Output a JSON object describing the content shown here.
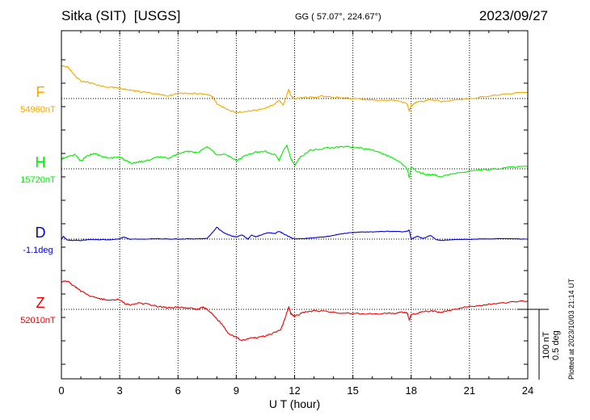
{
  "header": {
    "station": "Sitka (SIT)",
    "source": "[USGS]",
    "coords": "GG ( 57.07°, 224.67°)",
    "date": "2023/09/27"
  },
  "footnote": "Plotted at 2023/10/03 21:14 UT",
  "scale": {
    "line1": "100 nT",
    "line2": "0.5 deg"
  },
  "chart_data": {
    "type": "line",
    "xlabel": "U T (hour)",
    "xlim": [
      0,
      24
    ],
    "xticks": [
      "0",
      "3",
      "6",
      "9",
      "12",
      "15",
      "18",
      "21",
      "24"
    ],
    "grid": true,
    "scale_bar": {
      "nT": 100,
      "deg": 0.5
    },
    "series": [
      {
        "name": "F",
        "baseline_label": "54960nT",
        "baseline": 54960,
        "unit": "nT",
        "color": "#f5a800",
        "points": [
          [
            0,
            55007
          ],
          [
            0.3,
            55005
          ],
          [
            0.5,
            55000
          ],
          [
            0.7,
            54992
          ],
          [
            1,
            54985
          ],
          [
            1.5,
            54982
          ],
          [
            2,
            54978
          ],
          [
            2.5,
            54976
          ],
          [
            3,
            54975
          ],
          [
            3.5,
            54972
          ],
          [
            4,
            54970
          ],
          [
            4.5,
            54968
          ],
          [
            5,
            54966
          ],
          [
            5.5,
            54964
          ],
          [
            6,
            54967
          ],
          [
            6.5,
            54968
          ],
          [
            7,
            54967
          ],
          [
            7.5,
            54966
          ],
          [
            7.8,
            54962
          ],
          [
            8,
            54953
          ],
          [
            8.5,
            54945
          ],
          [
            9,
            54940
          ],
          [
            9.5,
            54942
          ],
          [
            10,
            54943
          ],
          [
            10.5,
            54946
          ],
          [
            11,
            54952
          ],
          [
            11.2,
            54958
          ],
          [
            11.4,
            54950
          ],
          [
            11.6,
            54965
          ],
          [
            11.7,
            54973
          ],
          [
            11.8,
            54964
          ],
          [
            12,
            54960
          ],
          [
            12.3,
            54961
          ],
          [
            12.8,
            54962
          ],
          [
            13.5,
            54963
          ],
          [
            14,
            54962
          ],
          [
            14.5,
            54961
          ],
          [
            15,
            54960
          ],
          [
            15.5,
            54959
          ],
          [
            16,
            54958
          ],
          [
            16.5,
            54957
          ],
          [
            17,
            54958
          ],
          [
            17.5,
            54956
          ],
          [
            17.8,
            54952
          ],
          [
            17.9,
            54942
          ],
          [
            18,
            54950
          ],
          [
            18.3,
            54955
          ],
          [
            18.8,
            54957
          ],
          [
            19,
            54959
          ],
          [
            19.5,
            54956
          ],
          [
            20,
            54957
          ],
          [
            21,
            54960
          ],
          [
            22,
            54964
          ],
          [
            23,
            54967
          ],
          [
            24,
            54969
          ]
        ]
      },
      {
        "name": "H",
        "baseline_label": "15720nT",
        "baseline": 15720,
        "unit": "nT",
        "color": "#00ee00",
        "points": [
          [
            0,
            15734
          ],
          [
            0.3,
            15737
          ],
          [
            0.7,
            15740
          ],
          [
            1,
            15731
          ],
          [
            1.3,
            15738
          ],
          [
            1.7,
            15742
          ],
          [
            2,
            15738
          ],
          [
            2.5,
            15735
          ],
          [
            3,
            15737
          ],
          [
            3.3,
            15732
          ],
          [
            3.6,
            15728
          ],
          [
            4,
            15730
          ],
          [
            4.5,
            15732
          ],
          [
            5,
            15738
          ],
          [
            5.5,
            15735
          ],
          [
            6,
            15741
          ],
          [
            6.5,
            15745
          ],
          [
            7,
            15742
          ],
          [
            7.5,
            15752
          ],
          [
            8,
            15740
          ],
          [
            8.5,
            15740
          ],
          [
            9,
            15731
          ],
          [
            9.5,
            15739
          ],
          [
            10,
            15744
          ],
          [
            10.5,
            15745
          ],
          [
            11,
            15740
          ],
          [
            11.2,
            15732
          ],
          [
            11.4,
            15745
          ],
          [
            11.6,
            15753
          ],
          [
            11.8,
            15735
          ],
          [
            12,
            15725
          ],
          [
            12.3,
            15737
          ],
          [
            12.8,
            15746
          ],
          [
            13.5,
            15749
          ],
          [
            14,
            15750
          ],
          [
            14.5,
            15752
          ],
          [
            15,
            15751
          ],
          [
            15.5,
            15749
          ],
          [
            16,
            15747
          ],
          [
            16.5,
            15742
          ],
          [
            17,
            15736
          ],
          [
            17.5,
            15728
          ],
          [
            17.8,
            15720
          ],
          [
            17.9,
            15707
          ],
          [
            18,
            15723
          ],
          [
            18.3,
            15716
          ],
          [
            18.8,
            15712
          ],
          [
            19.2,
            15712
          ],
          [
            19.5,
            15708
          ],
          [
            20,
            15712
          ],
          [
            21,
            15717
          ],
          [
            22,
            15719
          ],
          [
            23,
            15722
          ],
          [
            24,
            15723
          ]
        ]
      },
      {
        "name": "D",
        "baseline_label": "-1.1deg",
        "baseline": -1.1,
        "unit": "deg",
        "color": "#0000dd",
        "points": [
          [
            0,
            -1.104
          ],
          [
            0.1,
            -1.08
          ],
          [
            0.3,
            -1.108
          ],
          [
            1,
            -1.11
          ],
          [
            1.5,
            -1.102
          ],
          [
            2,
            -1.104
          ],
          [
            2.5,
            -1.104
          ],
          [
            3,
            -1.098
          ],
          [
            3.2,
            -1.085
          ],
          [
            3.5,
            -1.1
          ],
          [
            4,
            -1.1
          ],
          [
            5,
            -1.098
          ],
          [
            6,
            -1.1
          ],
          [
            6.5,
            -1.098
          ],
          [
            7,
            -1.098
          ],
          [
            7.5,
            -1.095
          ],
          [
            7.8,
            -1.05
          ],
          [
            8,
            -1.015
          ],
          [
            8.2,
            -1.04
          ],
          [
            8.5,
            -1.065
          ],
          [
            8.8,
            -1.08
          ],
          [
            9,
            -1.085
          ],
          [
            9.3,
            -1.07
          ],
          [
            9.6,
            -1.1
          ],
          [
            9.8,
            -1.07
          ],
          [
            10,
            -1.085
          ],
          [
            10.3,
            -1.07
          ],
          [
            10.6,
            -1.055
          ],
          [
            11,
            -1.06
          ],
          [
            11.2,
            -1.045
          ],
          [
            11.4,
            -1.06
          ],
          [
            11.6,
            -1.075
          ],
          [
            11.8,
            -1.088
          ],
          [
            12,
            -1.1
          ],
          [
            12.5,
            -1.097
          ],
          [
            13,
            -1.09
          ],
          [
            13.5,
            -1.085
          ],
          [
            14,
            -1.075
          ],
          [
            14.5,
            -1.06
          ],
          [
            15,
            -1.053
          ],
          [
            15.5,
            -1.05
          ],
          [
            16,
            -1.048
          ],
          [
            16.5,
            -1.046
          ],
          [
            17,
            -1.045
          ],
          [
            17.5,
            -1.048
          ],
          [
            17.8,
            -1.045
          ],
          [
            17.9,
            -1.035
          ],
          [
            18,
            -1.1
          ],
          [
            18.3,
            -1.08
          ],
          [
            18.6,
            -1.095
          ],
          [
            19,
            -1.073
          ],
          [
            19.3,
            -1.105
          ],
          [
            19.6,
            -1.11
          ],
          [
            20,
            -1.104
          ],
          [
            21,
            -1.102
          ],
          [
            22,
            -1.098
          ],
          [
            23,
            -1.098
          ],
          [
            24,
            -1.1
          ]
        ]
      },
      {
        "name": "Z",
        "baseline_label": "52010nT",
        "baseline": 52010,
        "unit": "nT",
        "color": "#ee0000",
        "points": [
          [
            0,
            52049
          ],
          [
            0.3,
            52050
          ],
          [
            0.7,
            52042
          ],
          [
            1,
            52036
          ],
          [
            1.5,
            52028
          ],
          [
            2,
            52025
          ],
          [
            2.5,
            52023
          ],
          [
            3,
            52024
          ],
          [
            3.3,
            52018
          ],
          [
            3.6,
            52016
          ],
          [
            4,
            52019
          ],
          [
            4.5,
            52017
          ],
          [
            5,
            52014
          ],
          [
            5.5,
            52012
          ],
          [
            6,
            52013
          ],
          [
            6.5,
            52012
          ],
          [
            7,
            52010
          ],
          [
            7.3,
            52013
          ],
          [
            7.6,
            52008
          ],
          [
            8,
            51996
          ],
          [
            8.3,
            51988
          ],
          [
            8.6,
            51975
          ],
          [
            9,
            51970
          ],
          [
            9.3,
            51966
          ],
          [
            9.6,
            51968
          ],
          [
            10,
            51970
          ],
          [
            10.5,
            51972
          ],
          [
            11,
            51977
          ],
          [
            11.3,
            51982
          ],
          [
            11.5,
            51996
          ],
          [
            11.7,
            52014
          ],
          [
            11.8,
            52004
          ],
          [
            12,
            52000
          ],
          [
            12.5,
            52006
          ],
          [
            13,
            52008
          ],
          [
            14,
            52006
          ],
          [
            15,
            52004
          ],
          [
            16,
            52004
          ],
          [
            17,
            52004
          ],
          [
            17.5,
            52006
          ],
          [
            17.8,
            52005
          ],
          [
            17.9,
            51995
          ],
          [
            18,
            52002
          ],
          [
            18.5,
            52006
          ],
          [
            19,
            52008
          ],
          [
            19.5,
            52006
          ],
          [
            20,
            52009
          ],
          [
            21,
            52014
          ],
          [
            22,
            52017
          ],
          [
            23,
            52020
          ],
          [
            24,
            52022
          ]
        ]
      }
    ]
  }
}
